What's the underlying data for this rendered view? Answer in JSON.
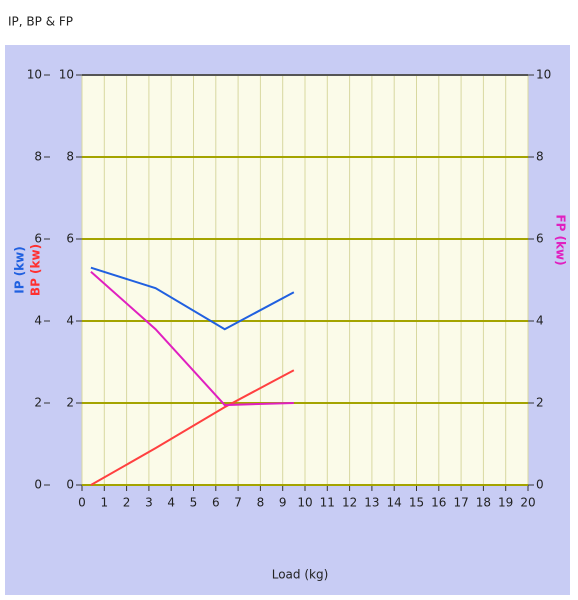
{
  "chart_data": {
    "type": "line",
    "title": "IP, BP & FP",
    "x_label": "Load (kg)",
    "y_label": "IP (kw)",
    "y_label_inner": "BP (kw)",
    "y2_label": "FP (kw)",
    "xlim": [
      0,
      20
    ],
    "xticks": [
      0,
      1,
      2,
      3,
      4,
      5,
      6,
      7,
      8,
      9,
      10,
      11,
      12,
      13,
      14,
      15,
      16,
      17,
      18,
      19,
      20
    ],
    "ylim": [
      0,
      10
    ],
    "yticks": [
      0,
      2,
      4,
      6,
      8,
      10
    ],
    "y2lim": [
      0,
      10
    ],
    "y2ticks": [
      0,
      2,
      4,
      6,
      8,
      10
    ],
    "grid": true,
    "series": [
      {
        "name": "IP",
        "color": "#2060e0",
        "x": [
          0.4,
          3.3,
          6.4,
          9.5
        ],
        "values": [
          5.3,
          4.8,
          3.8,
          4.7
        ]
      },
      {
        "name": "BP",
        "color": "#ff4040",
        "x": [
          0.4,
          3.3,
          6.4,
          9.5
        ],
        "values": [
          0,
          0.9,
          1.9,
          2.8
        ]
      },
      {
        "name": "FP",
        "color": "#e020c0",
        "axis": "y2",
        "x": [
          0.4,
          3.3,
          6.4,
          9.5
        ],
        "values": [
          5.2,
          3.8,
          1.95,
          2.0
        ]
      }
    ]
  }
}
